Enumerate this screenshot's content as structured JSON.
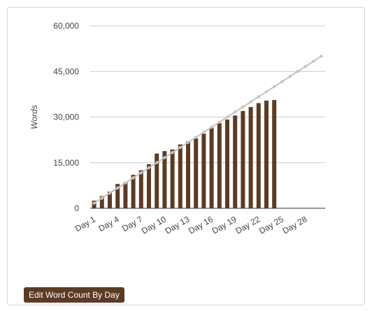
{
  "colors": {
    "bar": "#5b3b24",
    "target_line": "#c4c4c4",
    "grid": "#cccccc",
    "axis": "#333333",
    "text": "#444444",
    "button_bg": "#5b3b24",
    "button_text": "#ffffff"
  },
  "chart_data": {
    "type": "bar",
    "ylabel": "Words",
    "ylim": [
      0,
      60000
    ],
    "y_ticks": [
      0,
      15000,
      30000,
      45000,
      60000
    ],
    "y_tick_labels": [
      "0",
      "15,000",
      "30,000",
      "45,000",
      "60,000"
    ],
    "days": 30,
    "x_tick_labels": [
      "Day 1",
      "Day 4",
      "Day 7",
      "Day 10",
      "Day 13",
      "Day 16",
      "Day 19",
      "Day 22",
      "Day 25",
      "Day 28"
    ],
    "grid": true,
    "series": [
      {
        "kind": "bar",
        "values": [
          2500,
          4000,
          5500,
          8000,
          8500,
          11000,
          12500,
          14500,
          18000,
          18800,
          19300,
          21000,
          22000,
          23000,
          24500,
          26500,
          28000,
          29200,
          30500,
          32000,
          33300,
          34600,
          35400,
          35600
        ]
      },
      {
        "kind": "line",
        "values": [
          1667,
          3333,
          5000,
          6667,
          8333,
          10000,
          11667,
          13333,
          15000,
          16667,
          18333,
          20000,
          21667,
          23333,
          25000,
          26667,
          28333,
          30000,
          31667,
          33333,
          35000,
          36667,
          38333,
          40000,
          41667,
          43333,
          45000,
          46667,
          48333,
          50000
        ]
      }
    ]
  },
  "button": {
    "label": "Edit Word Count By Day"
  }
}
